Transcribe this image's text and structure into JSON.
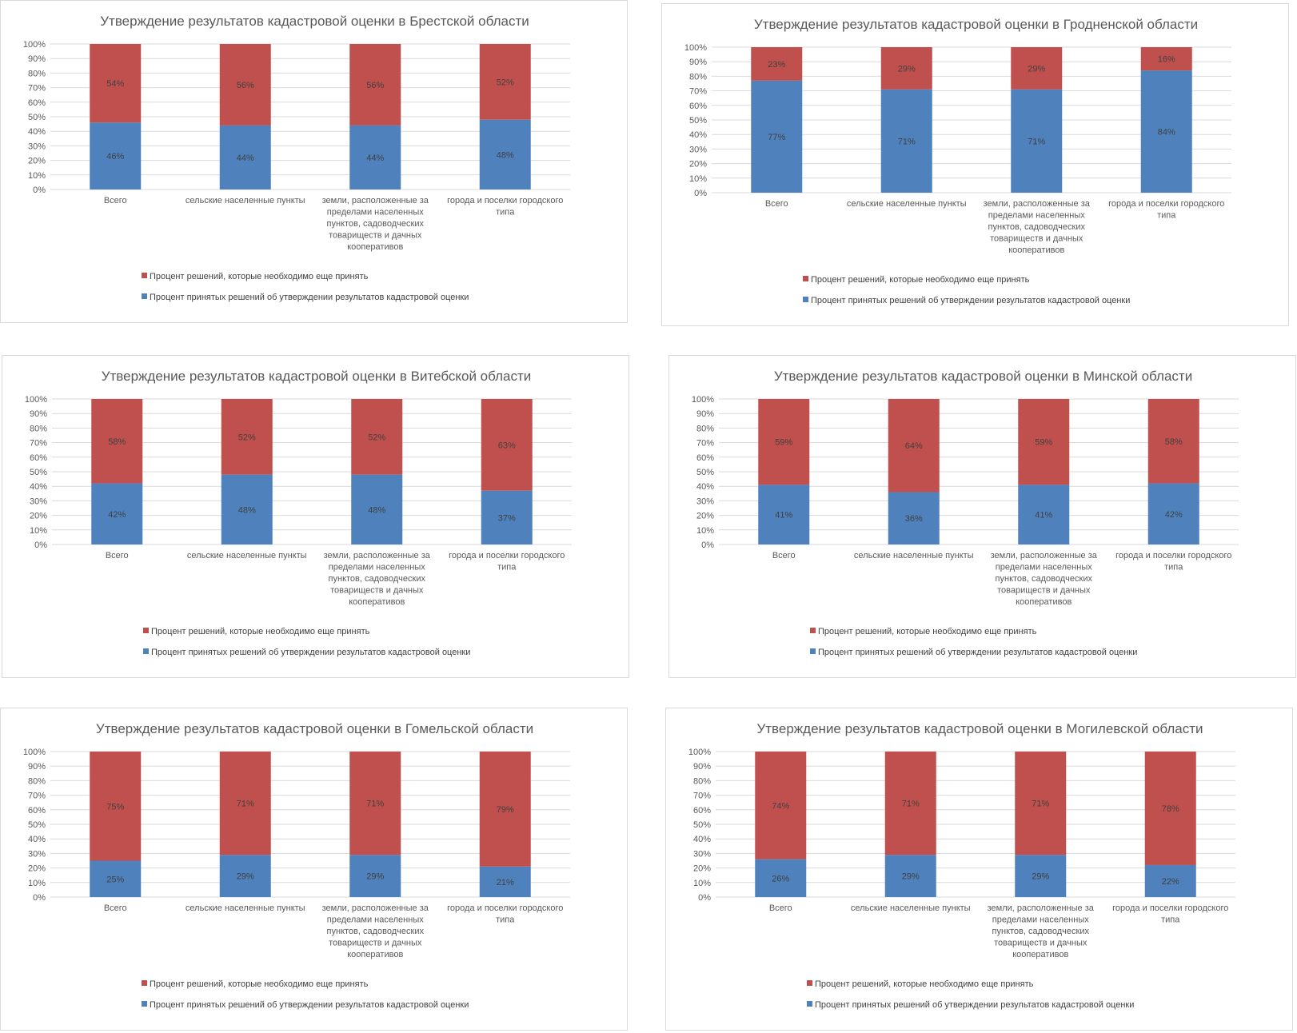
{
  "colors": {
    "decided": "#4f81bd",
    "remaining": "#c0504d",
    "grid": "#d9d9d9",
    "text": "#595959"
  },
  "legend": {
    "remaining": "Процент решений, которые необходимо еще принять",
    "decided": "Процент принятых решений об утверждении результатов кадастровой оценки"
  },
  "categories_lines": [
    [
      "Всего"
    ],
    [
      "сельские населенные пункты"
    ],
    [
      "земли, расположенные за",
      "пределами населенных",
      "пунктов, садоводческих",
      "товариществ и дачных",
      "кооперативов"
    ],
    [
      "города и поселки городского",
      "типа"
    ]
  ],
  "chart_data": [
    {
      "type": "bar",
      "stacked": true,
      "title": "Утверждение результатов кадастровой оценки в Брестской области",
      "categories": [
        "Всего",
        "сельские населенные пункты",
        "земли, расположенные за пределами населенных пунктов, садоводческих товариществ и дачных кооперативов",
        "города и поселки городского типа"
      ],
      "series": [
        {
          "name": "Процент принятых решений об утверждении результатов кадастровой оценки",
          "values": [
            46,
            44,
            44,
            48
          ]
        },
        {
          "name": "Процент решений, которые необходимо еще принять",
          "values": [
            54,
            56,
            56,
            52
          ]
        }
      ],
      "ylim": [
        0,
        100
      ],
      "y_ticks": [
        "0%",
        "10%",
        "20%",
        "30%",
        "40%",
        "50%",
        "60%",
        "70%",
        "80%",
        "90%",
        "100%"
      ],
      "grid": true,
      "legend": "bottom"
    },
    {
      "type": "bar",
      "stacked": true,
      "title": "Утверждение результатов кадастровой оценки в Гродненской области",
      "categories": [
        "Всего",
        "сельские населенные пункты",
        "земли, расположенные за пределами населенных пунктов, садоводческих товариществ и дачных кооперативов",
        "города и поселки городского типа"
      ],
      "series": [
        {
          "name": "Процент принятых решений об утверждении результатов кадастровой оценки",
          "values": [
            77,
            71,
            71,
            84
          ]
        },
        {
          "name": "Процент решений, которые необходимо еще принять",
          "values": [
            23,
            29,
            29,
            16
          ]
        }
      ],
      "ylim": [
        0,
        100
      ],
      "y_ticks": [
        "0%",
        "10%",
        "20%",
        "30%",
        "40%",
        "50%",
        "60%",
        "70%",
        "80%",
        "90%",
        "100%"
      ],
      "grid": true,
      "legend": "bottom"
    },
    {
      "type": "bar",
      "stacked": true,
      "title": "Утверждение результатов кадастровой оценки в Витебской области",
      "categories": [
        "Всего",
        "сельские населенные пункты",
        "земли, расположенные за пределами населенных пунктов, садоводческих товариществ и дачных кооперативов",
        "города и поселки городского типа"
      ],
      "series": [
        {
          "name": "Процент принятых решений об утверждении результатов кадастровой оценки",
          "values": [
            42,
            48,
            48,
            37
          ]
        },
        {
          "name": "Процент решений, которые необходимо еще принять",
          "values": [
            58,
            52,
            52,
            63
          ]
        }
      ],
      "ylim": [
        0,
        100
      ],
      "y_ticks": [
        "0%",
        "10%",
        "20%",
        "30%",
        "40%",
        "50%",
        "60%",
        "70%",
        "80%",
        "90%",
        "100%"
      ],
      "grid": true,
      "legend": "bottom"
    },
    {
      "type": "bar",
      "stacked": true,
      "title": "Утверждение результатов кадастровой оценки в Минской области",
      "categories": [
        "Всего",
        "сельские населенные пункты",
        "земли, расположенные за пределами населенных пунктов, садоводческих товариществ и дачных кооперативов",
        "города и поселки городского типа"
      ],
      "series": [
        {
          "name": "Процент принятых решений об утверждении результатов кадастровой оценки",
          "values": [
            41,
            36,
            41,
            42
          ]
        },
        {
          "name": "Процент решений, которые необходимо еще принять",
          "values": [
            59,
            64,
            59,
            58
          ]
        }
      ],
      "ylim": [
        0,
        100
      ],
      "y_ticks": [
        "0%",
        "10%",
        "20%",
        "30%",
        "40%",
        "50%",
        "60%",
        "70%",
        "80%",
        "90%",
        "100%"
      ],
      "grid": true,
      "legend": "bottom"
    },
    {
      "type": "bar",
      "stacked": true,
      "title": "Утверждение результатов кадастровой оценки в Гомельской области",
      "categories": [
        "Всего",
        "сельские населенные пункты",
        "земли, расположенные за пределами населенных пунктов, садоводческих товариществ и дачных кооперативов",
        "города и поселки городского типа"
      ],
      "series": [
        {
          "name": "Процент принятых решений об утверждении результатов кадастровой оценки",
          "values": [
            25,
            29,
            29,
            21
          ]
        },
        {
          "name": "Процент решений, которые необходимо еще принять",
          "values": [
            75,
            71,
            71,
            79
          ]
        }
      ],
      "ylim": [
        0,
        100
      ],
      "y_ticks": [
        "0%",
        "10%",
        "20%",
        "30%",
        "40%",
        "50%",
        "60%",
        "70%",
        "80%",
        "90%",
        "100%"
      ],
      "grid": true,
      "legend": "bottom"
    },
    {
      "type": "bar",
      "stacked": true,
      "title": "Утверждение результатов кадастровой оценки в Могилевской области",
      "categories": [
        "Всего",
        "сельские населенные пункты",
        "земли, расположенные за пределами населенных пунктов, садоводческих товариществ и дачных кооперативов",
        "города и поселки городского типа"
      ],
      "series": [
        {
          "name": "Процент принятых решений об утверждении результатов кадастровой оценки",
          "values": [
            26,
            29,
            29,
            22
          ]
        },
        {
          "name": "Процент решений, которые необходимо еще принять",
          "values": [
            74,
            71,
            71,
            78
          ]
        }
      ],
      "ylim": [
        0,
        100
      ],
      "y_ticks": [
        "0%",
        "10%",
        "20%",
        "30%",
        "40%",
        "50%",
        "60%",
        "70%",
        "80%",
        "90%",
        "100%"
      ],
      "grid": true,
      "legend": "bottom"
    }
  ]
}
